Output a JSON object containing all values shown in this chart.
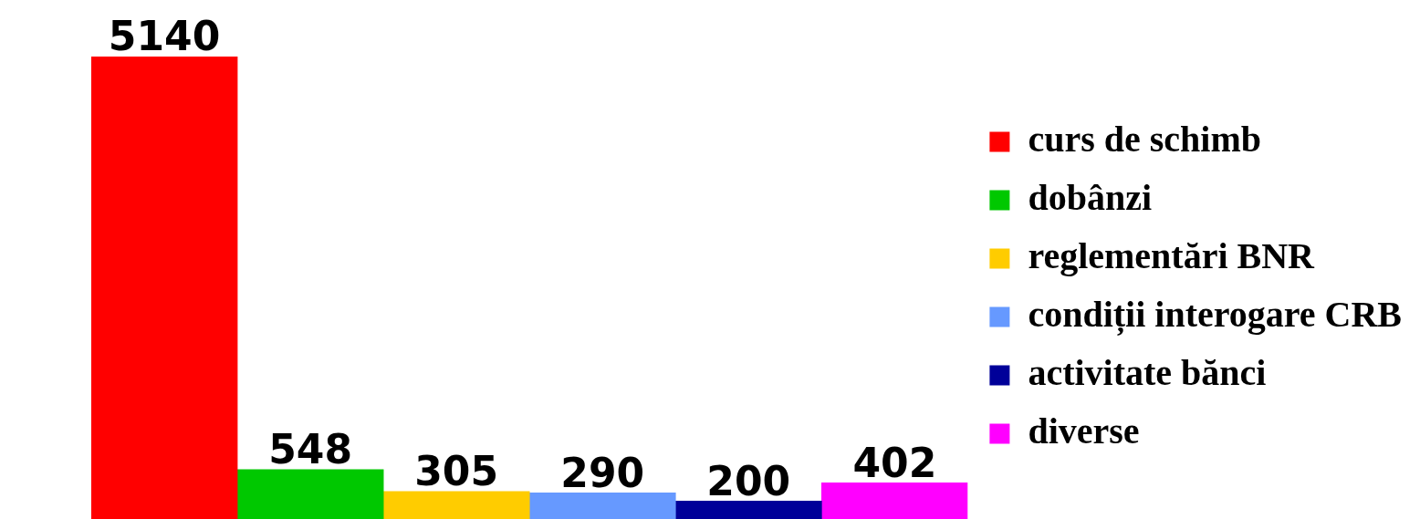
{
  "chart_data": {
    "type": "bar",
    "categories": [
      null,
      null,
      null,
      null,
      null,
      null
    ],
    "series": [
      {
        "name": "curs de schimb",
        "color": "#ff0000",
        "values": [
          5140,
          null,
          null,
          null,
          null,
          null
        ]
      },
      {
        "name": "dobânzi",
        "color": "#00c800",
        "values": [
          null,
          548,
          null,
          null,
          null,
          null
        ]
      },
      {
        "name": "reglementări BNR",
        "color": "#ffcc00",
        "values": [
          null,
          null,
          305,
          null,
          null,
          null
        ]
      },
      {
        "name": "condiții interogare CRB",
        "color": "#6699ff",
        "values": [
          null,
          null,
          null,
          290,
          null,
          null
        ]
      },
      {
        "name": "activitate bănci",
        "color": "#000099",
        "values": [
          null,
          null,
          null,
          null,
          200,
          null
        ]
      },
      {
        "name": "diverse",
        "color": "#ff00ff",
        "values": [
          null,
          null,
          null,
          null,
          null,
          402
        ]
      }
    ],
    "stacked": true,
    "data_labels": true,
    "legend": "right",
    "tick_labels": false
  }
}
